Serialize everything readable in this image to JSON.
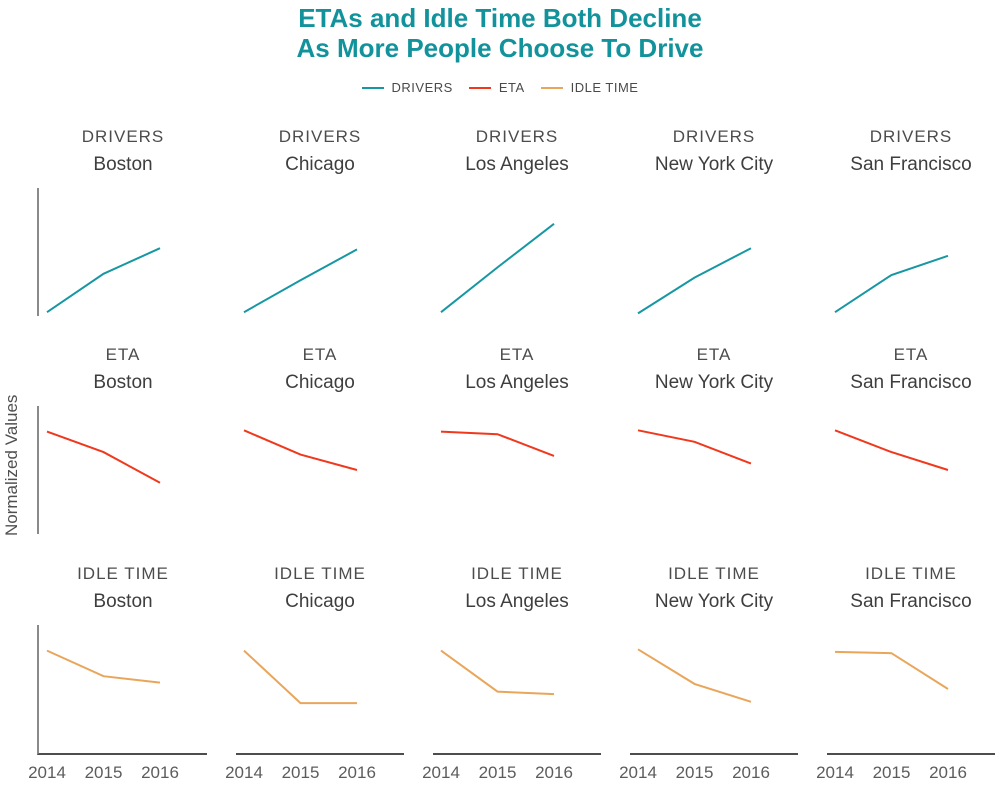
{
  "title": "ETAs and Idle Time Both Decline\nAs More People Choose To Drive",
  "ylabel": "Normalized Values",
  "legend": [
    {
      "label": "DRIVERS",
      "color": "#1797a3"
    },
    {
      "label": "ETA",
      "color": "#f0381d"
    },
    {
      "label": "IDLE TIME",
      "color": "#e9a65b"
    }
  ],
  "chart_data": {
    "type": "line",
    "layout": "small multiples: 3 metric rows x 5 city columns, shared normalized y-scale",
    "title": "ETAs and Idle Time Both Decline As More People Choose To Drive",
    "x": [
      "2014",
      "2015",
      "2016"
    ],
    "ylabel": "Normalized Values",
    "ylim": [
      0,
      1
    ],
    "grid": false,
    "legend_position": "top center",
    "rows": [
      {
        "metric": "DRIVERS",
        "color": "#1797a3",
        "show_x_axis": false,
        "series": [
          {
            "city": "Boston",
            "values": [
              0.03,
              0.33,
              0.53
            ]
          },
          {
            "city": "Chicago",
            "values": [
              0.03,
              0.28,
              0.52
            ]
          },
          {
            "city": "Los Angeles",
            "values": [
              0.03,
              0.38,
              0.72
            ]
          },
          {
            "city": "New York City",
            "values": [
              0.02,
              0.3,
              0.53
            ]
          },
          {
            "city": "San Francisco",
            "values": [
              0.03,
              0.32,
              0.47
            ]
          }
        ]
      },
      {
        "metric": "ETA",
        "color": "#f0381d",
        "show_x_axis": false,
        "series": [
          {
            "city": "Boston",
            "values": [
              0.8,
              0.64,
              0.4
            ]
          },
          {
            "city": "Chicago",
            "values": [
              0.81,
              0.62,
              0.5
            ]
          },
          {
            "city": "Los Angeles",
            "values": [
              0.8,
              0.78,
              0.61
            ]
          },
          {
            "city": "New York City",
            "values": [
              0.81,
              0.72,
              0.55
            ]
          },
          {
            "city": "San Francisco",
            "values": [
              0.81,
              0.64,
              0.5
            ]
          }
        ]
      },
      {
        "metric": "IDLE TIME",
        "color": "#e9a65b",
        "show_x_axis": true,
        "series": [
          {
            "city": "Boston",
            "values": [
              0.8,
              0.6,
              0.55
            ]
          },
          {
            "city": "Chicago",
            "values": [
              0.8,
              0.39,
              0.39
            ]
          },
          {
            "city": "Los Angeles",
            "values": [
              0.8,
              0.48,
              0.46
            ]
          },
          {
            "city": "New York City",
            "values": [
              0.81,
              0.54,
              0.4
            ]
          },
          {
            "city": "San Francisco",
            "values": [
              0.79,
              0.78,
              0.5
            ]
          }
        ]
      }
    ]
  }
}
